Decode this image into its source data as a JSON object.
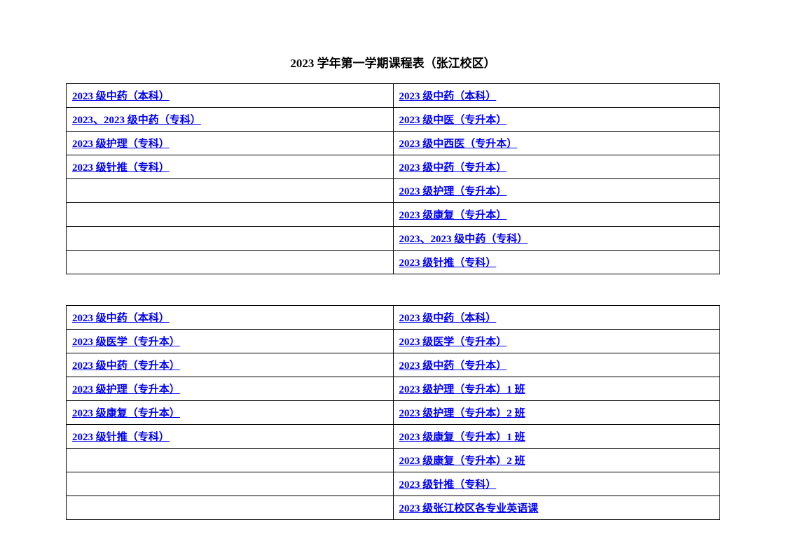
{
  "title": "2023 学年第一学期课程表（张江校区）",
  "table1": {
    "rows": [
      {
        "left": "2023 级中药（本科）",
        "right": "2023 级中药（本科）"
      },
      {
        "left": "2023、2023 级中药（专科）",
        "right": "2023 级中医（专升本）"
      },
      {
        "left": "2023 级护理（专科）",
        "right": "2023 级中西医（专升本）"
      },
      {
        "left": "2023 级针推（专科）",
        "right": "2023 级中药（专升本）"
      },
      {
        "left": "",
        "right": "2023 级护理（专升本）"
      },
      {
        "left": "",
        "right": "2023 级康复（专升本）"
      },
      {
        "left": "",
        "right": "2023、2023 级中药（专科）"
      },
      {
        "left": "",
        "right": "2023 级针推（专科）"
      }
    ]
  },
  "table2": {
    "rows": [
      {
        "left": "2023 级中药（本科）",
        "right": "2023 级中药（本科）"
      },
      {
        "left": "2023 级医学（专升本）",
        "right": "2023 级医学（专升本）"
      },
      {
        "left": "2023 级中药（专升本）",
        "right": "2023 级中药（专升本）"
      },
      {
        "left": "2023 级护理（专升本）",
        "right": "2023 级护理（专升本）1 班"
      },
      {
        "left": "2023 级康复（专升本）",
        "right": "2023 级护理（专升本）2 班"
      },
      {
        "left": "2023 级针推（专科）",
        "right": "2023 级康复（专升本）1 班"
      },
      {
        "left": "",
        "right": "2023 级康复（专升本）2 班"
      },
      {
        "left": "",
        "right": "2023 级针推（专科）"
      },
      {
        "left": "",
        "right": "2023 级张江校区各专业英语课"
      }
    ]
  },
  "colors": {
    "link": "#0000ee",
    "border": "#000000",
    "background": "#ffffff",
    "text": "#000000"
  },
  "fonts": {
    "title_size": 17,
    "link_size": 15
  }
}
